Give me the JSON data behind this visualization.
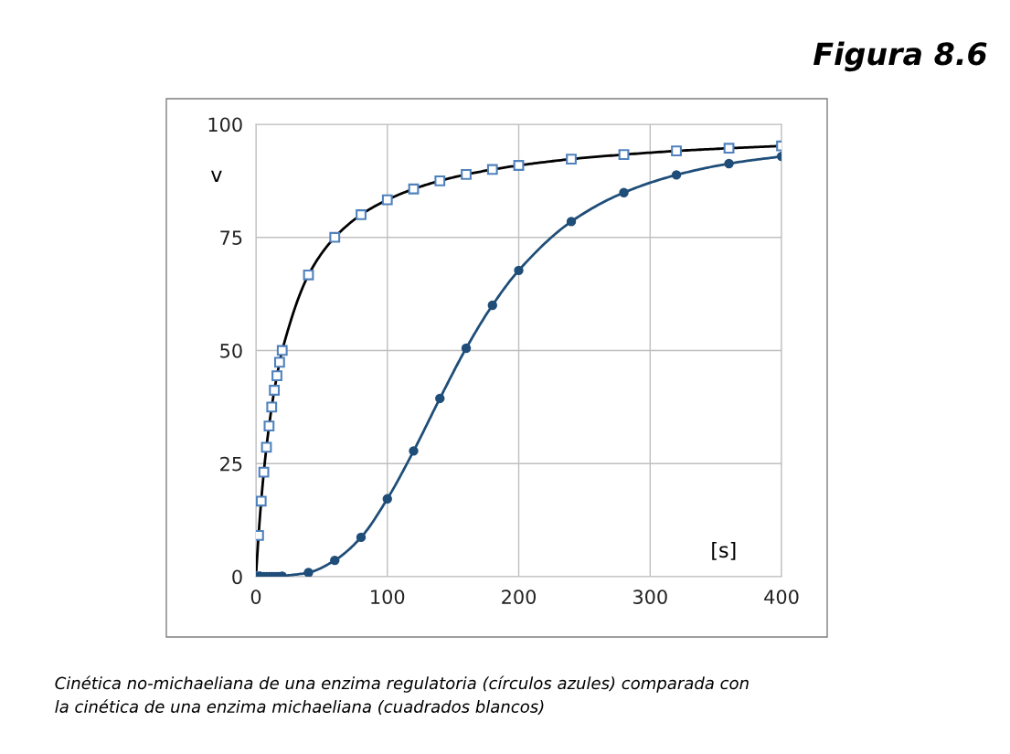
{
  "chart_data": {
    "type": "line",
    "title": "Figura 8.6",
    "xlabel": "[s]",
    "ylabel": "v",
    "annotations": [
      "Cinética no-michaeliana de una enzima regulatoria (círculos azules) comparada con\nla cinética de una enzima michaeliana (cuadrados blancos)"
    ],
    "xlim": [
      0,
      400
    ],
    "ylim": [
      0,
      100
    ],
    "xticks": [
      0,
      100,
      200,
      300,
      400
    ],
    "yticks": [
      0,
      25,
      50,
      75,
      100
    ],
    "grid": true,
    "legend": false,
    "series": [
      {
        "color": "#4f81bd",
        "marker": "square",
        "x": [
          0,
          2,
          4,
          6,
          8,
          10,
          12,
          14,
          16,
          18,
          20,
          40,
          60,
          80,
          100,
          120,
          140,
          160,
          180,
          200,
          240,
          280,
          320,
          360,
          400
        ],
        "values": [
          0,
          9.1,
          16.7,
          23.1,
          28.6,
          33.3,
          37.5,
          41.2,
          44.4,
          47.4,
          50,
          66.7,
          75,
          80,
          83.3,
          85.7,
          87.5,
          88.9,
          90,
          90.9,
          92.3,
          93.3,
          94.1,
          94.7,
          95.2
        ]
      },
      {
        "color": "#1f4e79",
        "marker": "circle",
        "x": [
          0,
          2,
          4,
          6,
          8,
          10,
          12,
          14,
          16,
          18,
          20,
          40,
          60,
          80,
          100,
          120,
          140,
          160,
          180,
          200,
          240,
          280,
          320,
          360,
          400
        ],
        "values": [
          0,
          0,
          0,
          0,
          0,
          0,
          0,
          0,
          0,
          0,
          0.1,
          0.9,
          3.6,
          8.7,
          17.2,
          27.8,
          39.4,
          50.5,
          60,
          67.7,
          78.5,
          84.9,
          88.8,
          91.3,
          92.9
        ]
      }
    ]
  }
}
